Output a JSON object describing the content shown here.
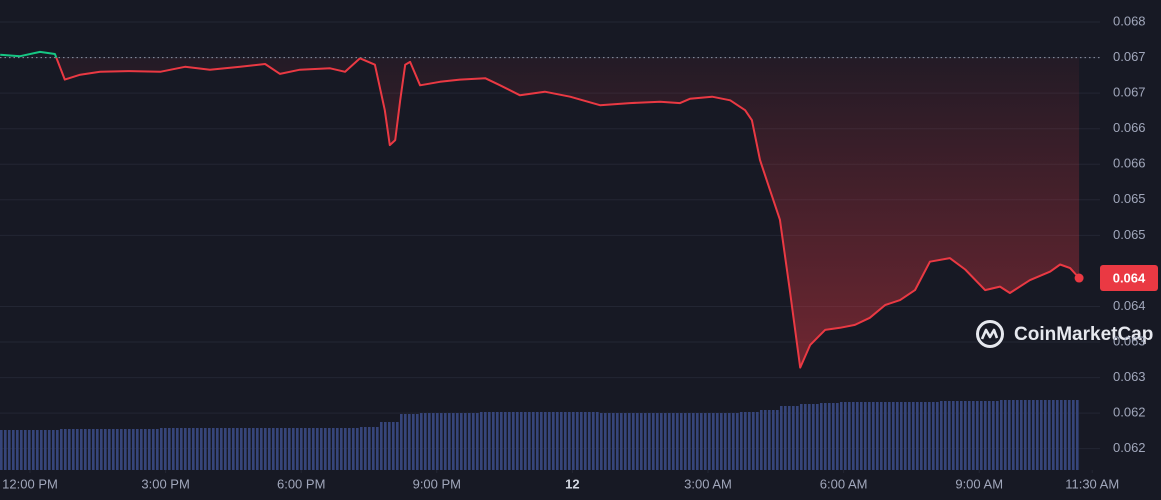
{
  "chart_data": {
    "type": "line",
    "series": [
      {
        "color": "#ea3943",
        "up_color": "#16c784",
        "x": [
          -0.66,
          -0.22,
          0.22,
          0.55,
          0.77,
          1.11,
          1.55,
          2.21,
          2.88,
          3.43,
          3.98,
          4.65,
          5.2,
          5.53,
          5.97,
          6.64,
          6.97,
          7.3,
          7.63,
          7.85,
          7.96,
          8.08,
          8.19,
          8.3,
          8.41,
          8.63,
          9.07,
          9.51,
          10.07,
          10.4,
          10.84,
          11.39,
          11.95,
          12.61,
          13.27,
          13.94,
          14.38,
          14.6,
          15.09,
          15.49,
          15.82,
          15.97,
          16.15,
          16.37,
          16.59,
          16.81,
          17.04,
          17.26,
          17.59,
          17.92,
          18.25,
          18.58,
          18.92,
          19.25,
          19.58,
          19.91,
          20.35,
          20.69,
          21.13,
          21.46,
          21.68,
          22.12,
          22.57,
          22.79,
          23.01,
          23.21
        ],
        "values": [
          0.06754,
          0.06752,
          0.06758,
          0.06755,
          0.06719,
          0.06726,
          0.0673,
          0.06731,
          0.0673,
          0.06737,
          0.06733,
          0.06737,
          0.06741,
          0.06727,
          0.06733,
          0.06735,
          0.0673,
          0.06749,
          0.0674,
          0.06676,
          0.06627,
          0.06634,
          0.0669,
          0.0674,
          0.06744,
          0.06711,
          0.06716,
          0.06719,
          0.06721,
          0.06711,
          0.06697,
          0.06702,
          0.06695,
          0.06683,
          0.06686,
          0.06688,
          0.06686,
          0.06692,
          0.06695,
          0.0669,
          0.06676,
          0.06662,
          0.06606,
          0.06564,
          0.06522,
          0.06423,
          0.06314,
          0.06346,
          0.06367,
          0.0637,
          0.06374,
          0.06384,
          0.06402,
          0.06409,
          0.06423,
          0.06463,
          0.06468,
          0.06452,
          0.06423,
          0.06428,
          0.06419,
          0.06437,
          0.06449,
          0.06459,
          0.06454,
          0.0644
        ]
      }
    ],
    "baseline": 0.0675,
    "current_label": "0.064",
    "volume": {
      "color": "#3b4a7e",
      "vlim": [
        0,
        100
      ],
      "values": [
        40,
        40,
        40,
        41,
        41,
        41,
        41,
        41,
        42,
        42,
        42,
        42,
        42,
        42,
        42,
        42,
        42,
        42,
        43,
        48,
        56,
        57,
        57,
        57,
        58,
        58,
        58,
        58,
        58,
        58,
        57,
        57,
        57,
        57,
        57,
        57,
        57,
        58,
        60,
        64,
        66,
        67,
        68,
        68,
        68,
        68,
        68,
        69,
        69,
        69,
        70,
        70,
        70,
        70
      ]
    },
    "xlim": [
      -0.664,
      23.23
    ],
    "xticks": [
      {
        "value": 0,
        "label": "12:00 PM"
      },
      {
        "value": 3,
        "label": "3:00 PM"
      },
      {
        "value": 6,
        "label": "6:00 PM"
      },
      {
        "value": 9,
        "label": "9:00 PM"
      },
      {
        "value": 12,
        "label": "12"
      },
      {
        "value": 15,
        "label": "3:00 AM"
      },
      {
        "value": 18,
        "label": "6:00 AM"
      },
      {
        "value": 21,
        "label": "9:00 AM"
      },
      {
        "value": 23.5,
        "label": "11:30 AM"
      }
    ],
    "ylim": [
      0.0617,
      0.06831
    ],
    "yticks": [
      0.068,
      {
        "value": 0.0675,
        "label": "0.067"
      },
      0.067,
      {
        "value": 0.0665,
        "label": "0.066"
      },
      0.066,
      {
        "value": 0.0655,
        "label": "0.065"
      },
      0.065,
      0.064,
      {
        "value": 0.0635,
        "label": "0.063"
      },
      0.063,
      {
        "value": 0.0625,
        "label": "0.062"
      },
      0.062
    ],
    "grid": true,
    "watermark": "CoinMarketCap"
  }
}
